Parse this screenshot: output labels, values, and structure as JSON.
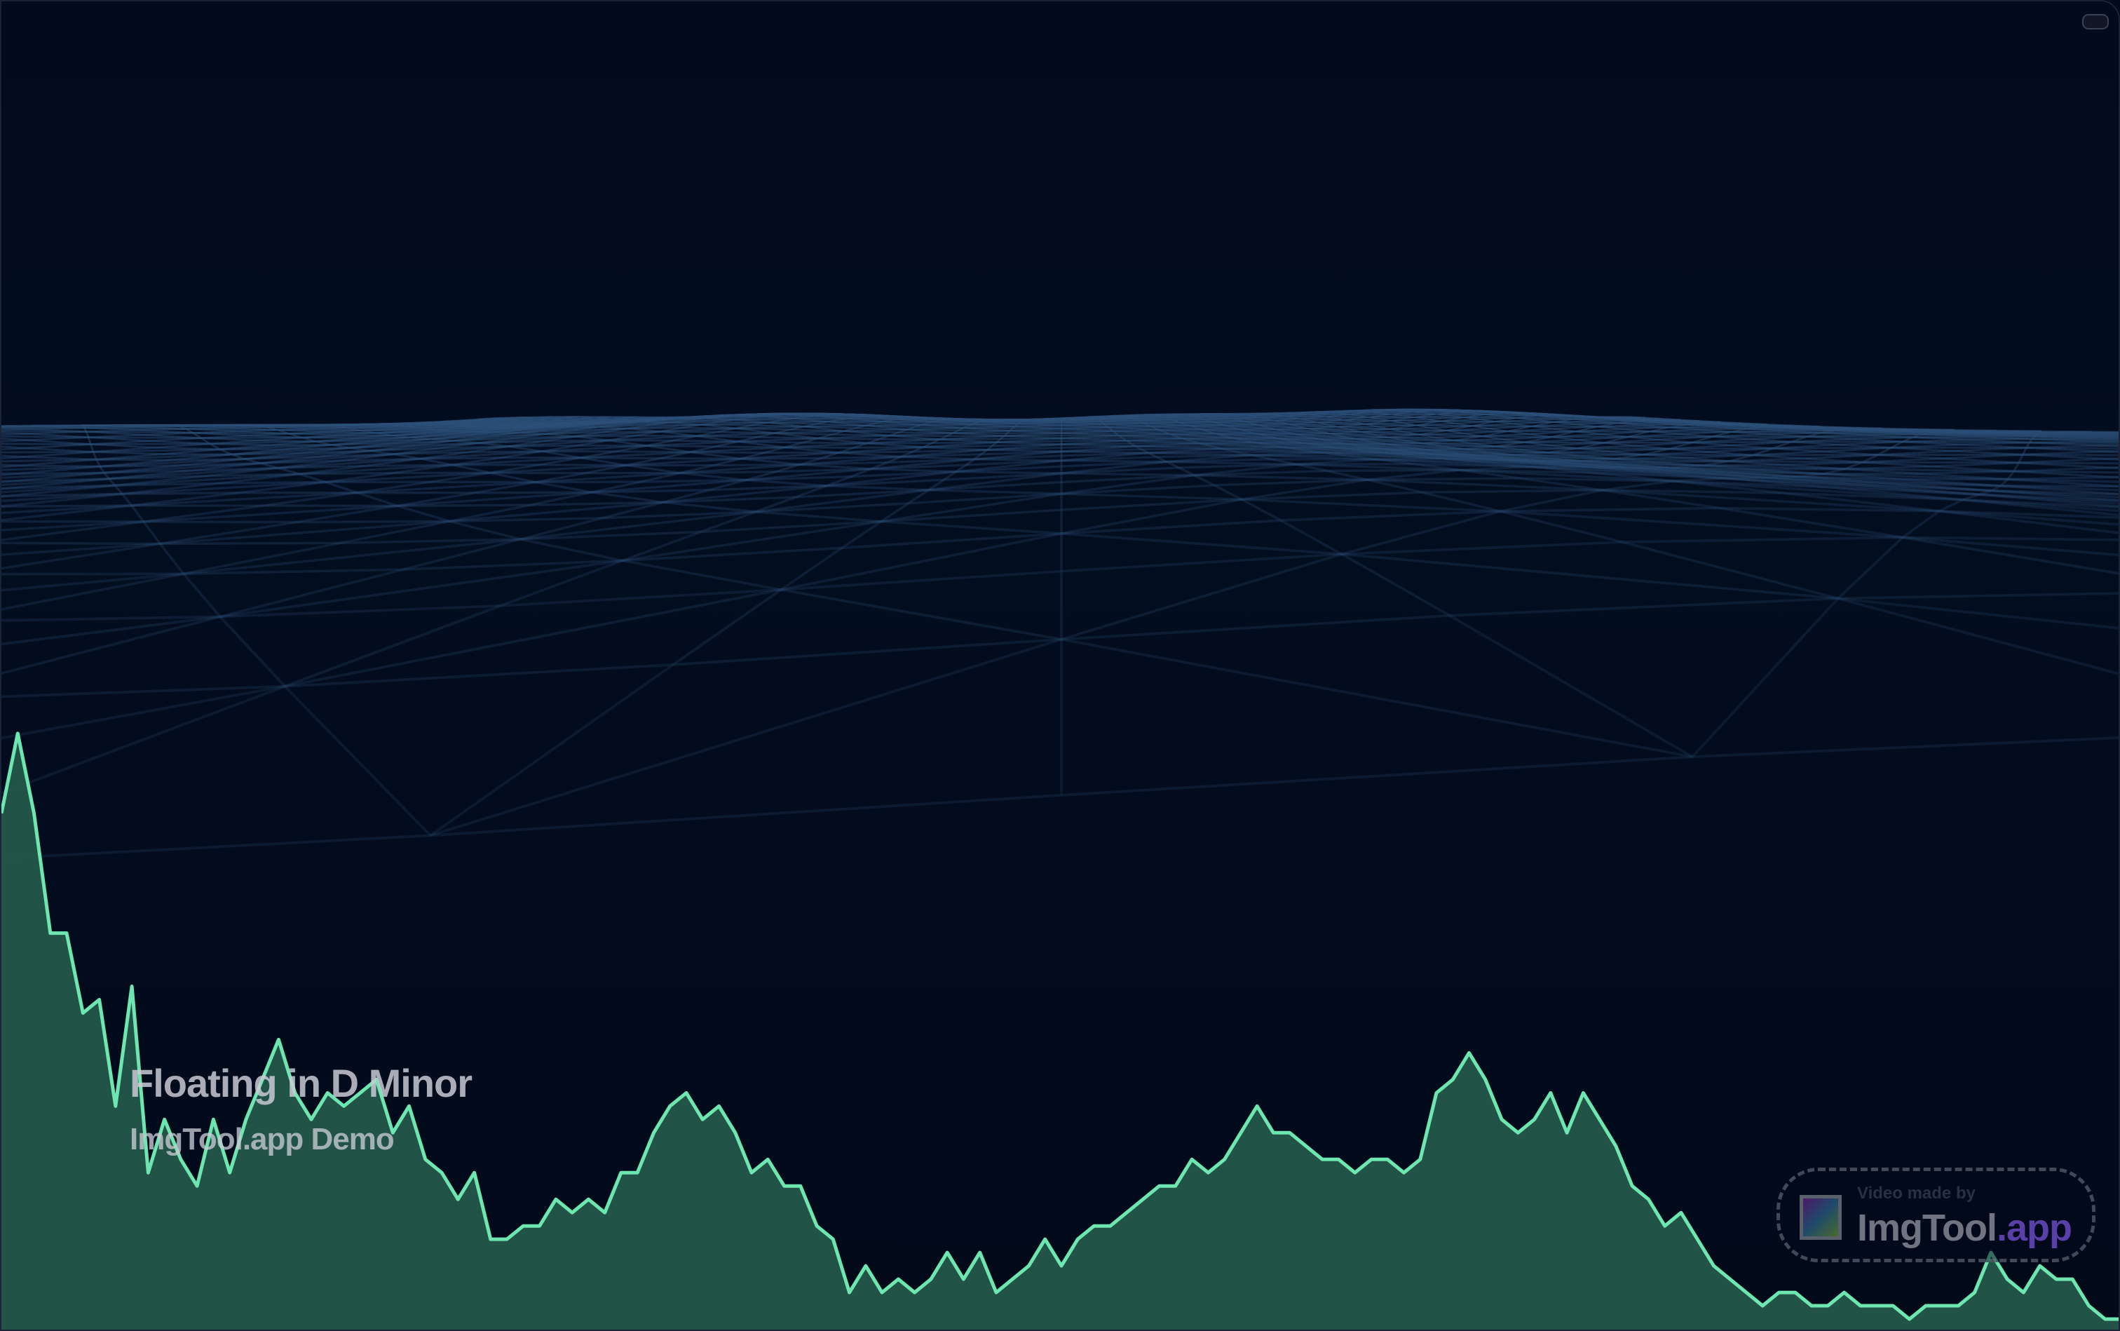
{
  "track": {
    "title": "Floating in D Minor",
    "subtitle": "ImgTool.app Demo"
  },
  "watermark": {
    "caption": "Video made by",
    "brand": "ImgTool",
    "brand_suffix": ".app"
  },
  "colors": {
    "background": "#020b1d",
    "mesh": "#2c5078",
    "spectrum_line": "#6ee6b0",
    "spectrum_fill": "#24574a",
    "brand_accent": "#5a3fa8"
  },
  "spectrum_levels": [
    39,
    45,
    39,
    30,
    30,
    24,
    25,
    17,
    26,
    12,
    16,
    13,
    11,
    16,
    12,
    16,
    19,
    22,
    18,
    16,
    18,
    17,
    18,
    19,
    15,
    17,
    13,
    12,
    10,
    12,
    7,
    7,
    8,
    8,
    10,
    9,
    10,
    9,
    12,
    12,
    15,
    17,
    18,
    16,
    17,
    15,
    12,
    13,
    11,
    11,
    8,
    7,
    3,
    5,
    3,
    4,
    3,
    4,
    6,
    4,
    6,
    3,
    4,
    5,
    7,
    5,
    7,
    8,
    8,
    9,
    10,
    11,
    11,
    13,
    12,
    13,
    15,
    17,
    15,
    15,
    14,
    13,
    13,
    12,
    13,
    13,
    12,
    13,
    18,
    19,
    21,
    19,
    16,
    15,
    16,
    18,
    15,
    18,
    16,
    14,
    11,
    10,
    8,
    9,
    7,
    5,
    4,
    3,
    2,
    3,
    3,
    2,
    2,
    3,
    2,
    2,
    2,
    1,
    2,
    2,
    2,
    3,
    6,
    4,
    3,
    5,
    4,
    4,
    2,
    1,
    1
  ]
}
